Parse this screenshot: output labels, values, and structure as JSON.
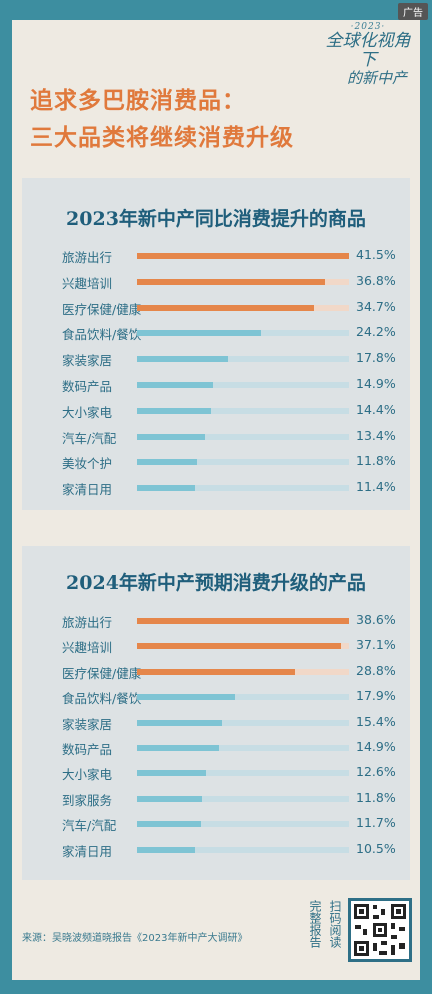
{
  "ad_label": "广告",
  "brand": {
    "year": "·2023·",
    "line1": "全球化视角下",
    "line2": "的新中产"
  },
  "headline": {
    "line1": "追求多巴胺消费品：",
    "line2": "三大品类将继续消费升级"
  },
  "source": "来源：吴晓波频道晓报告《2023年新中产大调研》",
  "qr": {
    "left_text": "完整报告",
    "right_text": "扫码阅读"
  },
  "colors": {
    "background": "#3d8ea0",
    "orange": "#e5864a",
    "blue": "#7ec4d4",
    "title": "#1f5e7b"
  },
  "chart_data": [
    {
      "type": "bar",
      "title": "2023年新中产同比消费提升的商品",
      "categories": [
        "旅游出行",
        "兴趣培训",
        "医疗保健/健康",
        "食品饮料/餐饮",
        "家装家居",
        "数码产品",
        "大小家电",
        "汽车/汽配",
        "美妆个护",
        "家清日用"
      ],
      "values": [
        41.5,
        36.8,
        34.7,
        24.2,
        17.8,
        14.9,
        14.4,
        13.4,
        11.8,
        11.4
      ],
      "value_labels": [
        "41.5%",
        "36.8%",
        "34.7%",
        "24.2%",
        "17.8%",
        "14.9%",
        "14.4%",
        "13.4%",
        "11.8%",
        "11.4%"
      ],
      "highlight_top": 3,
      "xlim": [
        0,
        41.5
      ],
      "orientation": "horizontal"
    },
    {
      "type": "bar",
      "title": "2024年新中产预期消费升级的产品",
      "categories": [
        "旅游出行",
        "兴趣培训",
        "医疗保健/健康",
        "食品饮料/餐饮",
        "家装家居",
        "数码产品",
        "大小家电",
        "到家服务",
        "汽车/汽配",
        "家清日用"
      ],
      "values": [
        38.6,
        37.1,
        28.8,
        17.9,
        15.4,
        14.9,
        12.6,
        11.8,
        11.7,
        10.5
      ],
      "value_labels": [
        "38.6%",
        "37.1%",
        "28.8%",
        "17.9%",
        "15.4%",
        "14.9%",
        "12.6%",
        "11.8%",
        "11.7%",
        "10.5%"
      ],
      "highlight_top": 3,
      "xlim": [
        0,
        38.6
      ],
      "orientation": "horizontal"
    }
  ]
}
